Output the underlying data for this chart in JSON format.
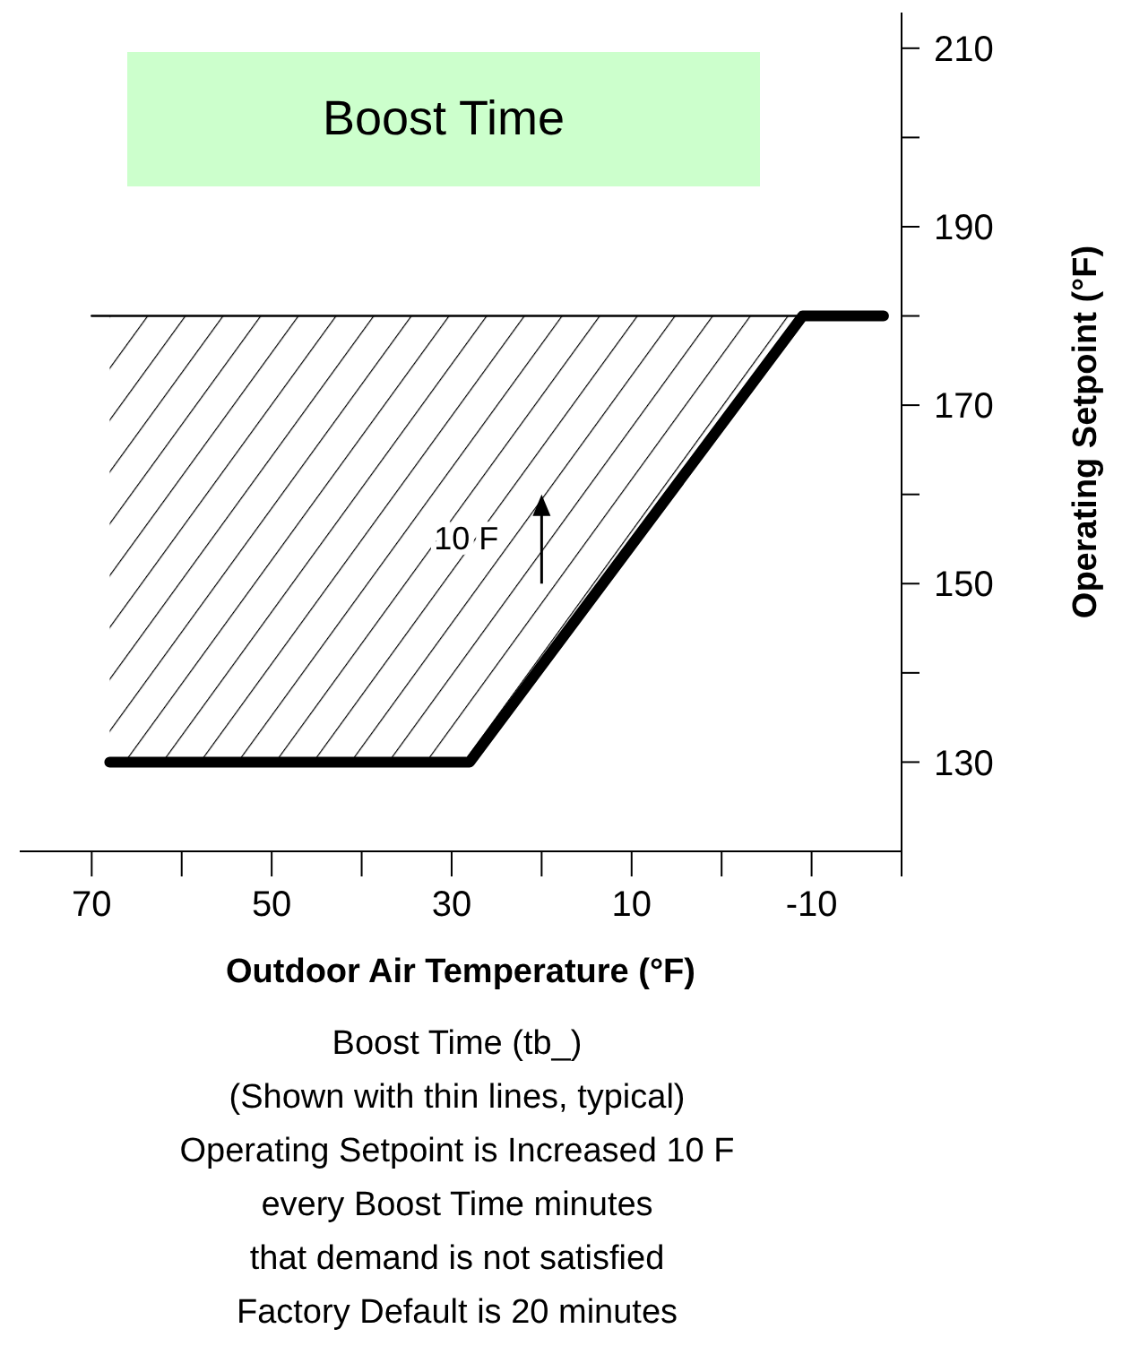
{
  "chart_data": {
    "type": "line",
    "title": "Boost Time",
    "xlabel": "Outdoor Air Temperature (°F)",
    "ylabel": "Operating Setpoint (°F)",
    "series": [
      {
        "color": "#000000",
        "x": [
          68,
          28,
          -9,
          -18
        ],
        "values": [
          130,
          130,
          180,
          180
        ],
        "lower": [
          130,
          130,
          180,
          180
        ],
        "upper": [
          180,
          180,
          180,
          180
        ]
      },
      {
        "color": "#000000",
        "x": [
          70,
          -9
        ],
        "values": [
          180,
          180
        ]
      }
    ],
    "xlim": [
      78,
      -20
    ],
    "xticks": [
      70,
      {
        "value": 60,
        "label": null
      },
      50,
      {
        "value": 40,
        "label": null
      },
      30,
      {
        "value": 20,
        "label": null
      },
      10,
      {
        "value": 0,
        "label": null
      },
      -10,
      {
        "value": -20,
        "label": null
      }
    ],
    "ylim": [
      120,
      214
    ],
    "yticks": [
      130,
      {
        "value": 140,
        "label": null
      },
      150,
      {
        "value": 160,
        "label": null
      },
      170,
      {
        "value": 180,
        "label": null
      },
      190,
      {
        "value": 200,
        "label": null
      },
      210
    ],
    "annotations": [
      "10 F",
      "Boost Time (tb_)",
      "(Shown with thin lines, typical)",
      "Operating Setpoint is Increased 10 F",
      "every Boost Time  minutes",
      "that demand is not satisfied",
      "Factory Default is 20 minutes"
    ],
    "marker": "none",
    "line_style": "solid"
  }
}
